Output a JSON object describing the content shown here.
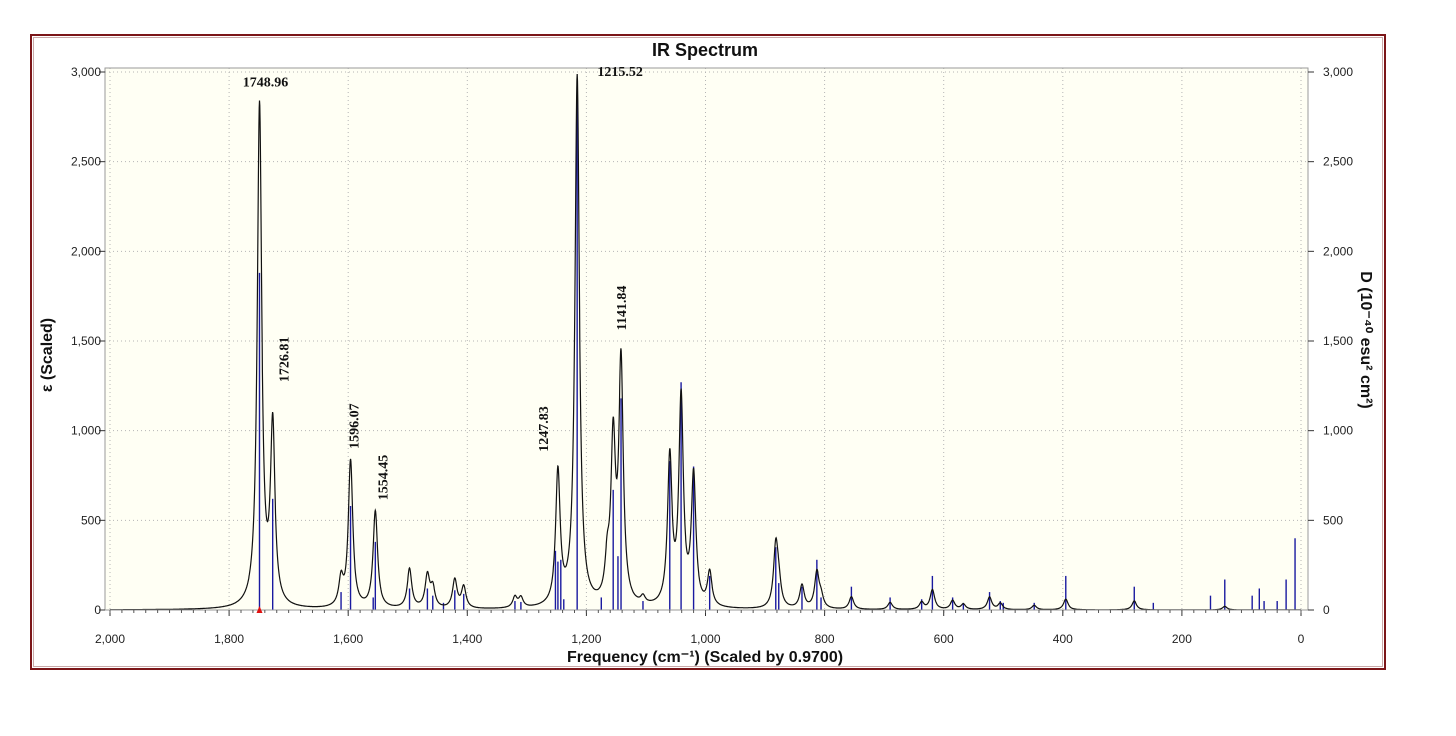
{
  "chart_data": {
    "type": "line",
    "title": "IR Spectrum",
    "xlabel": "Frequency (cm⁻¹) (Scaled by 0.9700)",
    "ylabel_left": "ε (Scaled)",
    "ylabel_right": "D (10⁻⁴⁰ esu² cm²)",
    "xlim": [
      2000,
      0
    ],
    "ylim": [
      0,
      3000
    ],
    "x_ticks": [
      "2,000",
      "1,800",
      "1,600",
      "1,400",
      "1,200",
      "1,000",
      "800",
      "600",
      "400",
      "200",
      "0"
    ],
    "y_ticks": [
      "0",
      "500",
      "1,000",
      "1,500",
      "2,000",
      "2,500",
      "3,000"
    ],
    "grid": true,
    "colors": {
      "spectrum": "#111111",
      "sticks": "#1a1aa0",
      "frame": "#7b1518",
      "plot_bg": "#fffff4",
      "marker": "#e01010"
    },
    "marker_x": 1748.96,
    "series": [
      {
        "peaks": [
          {
            "x": 1748.96,
            "y": 2800
          },
          {
            "x": 1726.81,
            "y": 990
          },
          {
            "x": 1612,
            "y": 150
          },
          {
            "x": 1596.07,
            "y": 820
          },
          {
            "x": 1554.45,
            "y": 540
          },
          {
            "x": 1497,
            "y": 220
          },
          {
            "x": 1467,
            "y": 180
          },
          {
            "x": 1458,
            "y": 110
          },
          {
            "x": 1421,
            "y": 160
          },
          {
            "x": 1406,
            "y": 120
          },
          {
            "x": 1320,
            "y": 60
          },
          {
            "x": 1310,
            "y": 55
          },
          {
            "x": 1247.83,
            "y": 740
          },
          {
            "x": 1215.52,
            "y": 2960
          },
          {
            "x": 1165,
            "y": 200
          },
          {
            "x": 1155,
            "y": 880
          },
          {
            "x": 1141.84,
            "y": 1340
          },
          {
            "x": 1105,
            "y": 40
          },
          {
            "x": 1060,
            "y": 820
          },
          {
            "x": 1041,
            "y": 1150
          },
          {
            "x": 1020,
            "y": 720
          },
          {
            "x": 993,
            "y": 190
          },
          {
            "x": 882,
            "y": 340
          },
          {
            "x": 877,
            "y": 120
          },
          {
            "x": 838,
            "y": 130
          },
          {
            "x": 813,
            "y": 200
          },
          {
            "x": 806,
            "y": 60
          },
          {
            "x": 755,
            "y": 70
          },
          {
            "x": 690,
            "y": 40
          },
          {
            "x": 637,
            "y": 40
          },
          {
            "x": 619,
            "y": 110
          },
          {
            "x": 585,
            "y": 50
          },
          {
            "x": 567,
            "y": 30
          },
          {
            "x": 523,
            "y": 70
          },
          {
            "x": 505,
            "y": 35
          },
          {
            "x": 448,
            "y": 25
          },
          {
            "x": 395,
            "y": 60
          },
          {
            "x": 280,
            "y": 50
          },
          {
            "x": 128,
            "y": 20
          }
        ]
      },
      {
        "sticks": [
          {
            "x": 1748.96,
            "y": 1880
          },
          {
            "x": 1726.81,
            "y": 620
          },
          {
            "x": 1612,
            "y": 100
          },
          {
            "x": 1596.07,
            "y": 580
          },
          {
            "x": 1554.45,
            "y": 380
          },
          {
            "x": 1558,
            "y": 70
          },
          {
            "x": 1497,
            "y": 120
          },
          {
            "x": 1467,
            "y": 120
          },
          {
            "x": 1458,
            "y": 80
          },
          {
            "x": 1440,
            "y": 40
          },
          {
            "x": 1421,
            "y": 110
          },
          {
            "x": 1406,
            "y": 90
          },
          {
            "x": 1320,
            "y": 50
          },
          {
            "x": 1310,
            "y": 45
          },
          {
            "x": 1252,
            "y": 330
          },
          {
            "x": 1247.83,
            "y": 270
          },
          {
            "x": 1243,
            "y": 280
          },
          {
            "x": 1238,
            "y": 60
          },
          {
            "x": 1215.52,
            "y": 2920
          },
          {
            "x": 1175,
            "y": 70
          },
          {
            "x": 1155,
            "y": 670
          },
          {
            "x": 1147,
            "y": 300
          },
          {
            "x": 1141.84,
            "y": 1180
          },
          {
            "x": 1105,
            "y": 50
          },
          {
            "x": 1060,
            "y": 830
          },
          {
            "x": 1041,
            "y": 1270
          },
          {
            "x": 1020,
            "y": 800
          },
          {
            "x": 993,
            "y": 190
          },
          {
            "x": 882,
            "y": 350
          },
          {
            "x": 877,
            "y": 150
          },
          {
            "x": 838,
            "y": 130
          },
          {
            "x": 813,
            "y": 280
          },
          {
            "x": 806,
            "y": 70
          },
          {
            "x": 755,
            "y": 130
          },
          {
            "x": 690,
            "y": 70
          },
          {
            "x": 637,
            "y": 60
          },
          {
            "x": 619,
            "y": 190
          },
          {
            "x": 585,
            "y": 70
          },
          {
            "x": 567,
            "y": 40
          },
          {
            "x": 523,
            "y": 100
          },
          {
            "x": 505,
            "y": 50
          },
          {
            "x": 500,
            "y": 40
          },
          {
            "x": 448,
            "y": 40
          },
          {
            "x": 395,
            "y": 190
          },
          {
            "x": 280,
            "y": 130
          },
          {
            "x": 248,
            "y": 40
          },
          {
            "x": 152,
            "y": 80
          },
          {
            "x": 128,
            "y": 170
          },
          {
            "x": 82,
            "y": 80
          },
          {
            "x": 70,
            "y": 120
          },
          {
            "x": 62,
            "y": 50
          },
          {
            "x": 40,
            "y": 50
          },
          {
            "x": 25,
            "y": 170
          },
          {
            "x": 10,
            "y": 400
          }
        ]
      }
    ],
    "annotations": [
      {
        "text": "1748.96",
        "x": 1748.96,
        "orientation": "horizontal"
      },
      {
        "text": "1726.81",
        "x": 1726.81,
        "orientation": "vertical"
      },
      {
        "text": "1596.07",
        "x": 1596.07,
        "orientation": "vertical"
      },
      {
        "text": "1554.45",
        "x": 1554.45,
        "orientation": "vertical"
      },
      {
        "text": "1247.83",
        "x": 1247.83,
        "orientation": "vertical"
      },
      {
        "text": "1215.52",
        "x": 1215.52,
        "orientation": "horizontal"
      },
      {
        "text": "1141.84",
        "x": 1141.84,
        "orientation": "vertical"
      }
    ]
  }
}
